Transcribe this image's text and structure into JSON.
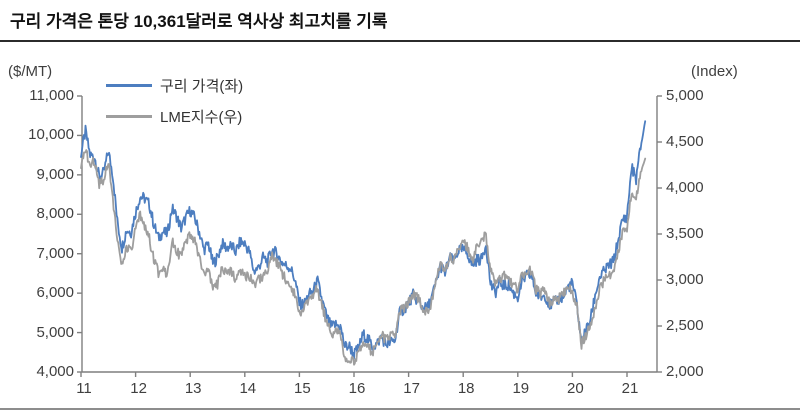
{
  "title": "구리 가격은 톤당 10,361달러로 역사상 최고치를 기록",
  "legend": {
    "items": [
      {
        "label": "구리 가격(좌)",
        "color": "#4d7ec0"
      },
      {
        "label": "LME지수(우)",
        "color": "#9e9e9e"
      }
    ]
  },
  "axes": {
    "left_unit": "($/MT)",
    "right_unit": "(Index)",
    "left_tick_labels": [
      "11,000",
      "10,000",
      "9,000",
      "8,000",
      "7,000",
      "6,000",
      "5,000",
      "4,000"
    ],
    "left_tick_values": [
      11000,
      10000,
      9000,
      8000,
      7000,
      6000,
      5000,
      4000
    ],
    "right_tick_labels": [
      "5,000",
      "4,500",
      "4,000",
      "3,500",
      "3,000",
      "2,500",
      "2,000"
    ],
    "right_tick_values": [
      5000,
      4500,
      4000,
      3500,
      3000,
      2500,
      2000
    ],
    "x_tick_labels": [
      "11",
      "12",
      "13",
      "14",
      "15",
      "16",
      "17",
      "18",
      "19",
      "20",
      "21"
    ],
    "x_tick_years": [
      2011,
      2012,
      2013,
      2014,
      2015,
      2016,
      2017,
      2018,
      2019,
      2020,
      2021
    ]
  },
  "chart_data": {
    "type": "line",
    "title": "구리 가격은 톤당 10,361달러로 역사상 최고치를 기록",
    "x_start_year": 2011.0,
    "x_step": "1 month",
    "x_end": "2021-05",
    "left_axis_label": "($/MT)",
    "right_axis_label": "(Index)",
    "left_range": [
      4000,
      11000
    ],
    "right_range": [
      2000,
      5000
    ],
    "x_domain_years": [
      2011.0,
      2021.55
    ],
    "grid": false,
    "legend_position": "top-left-inside",
    "series": [
      {
        "name": "구리 가격(좌)",
        "axis": "left",
        "unit": "$/MT",
        "color": "#4d7ec0",
        "peak_annotated": 10361,
        "values": [
          9550,
          10100,
          9500,
          9450,
          8950,
          9050,
          9600,
          9000,
          7800,
          7150,
          7600,
          7550,
          8050,
          8450,
          8400,
          8250,
          7750,
          7400,
          7550,
          7500,
          8150,
          7950,
          7650,
          7900,
          8100,
          7900,
          7550,
          7100,
          7250,
          6750,
          6900,
          7250,
          7150,
          7200,
          7050,
          7300,
          7250,
          7050,
          6550,
          6650,
          6900,
          6800,
          7100,
          7000,
          6800,
          6700,
          6650,
          6350,
          5750,
          5700,
          5950,
          6050,
          6300,
          5800,
          5400,
          5150,
          5200,
          5150,
          4650,
          4650,
          4450,
          4600,
          4950,
          4850,
          4650,
          4700,
          4900,
          4700,
          4750,
          4800,
          5500,
          5600,
          5750,
          5950,
          5800,
          5650,
          5600,
          5850,
          6250,
          6700,
          6500,
          6900,
          6800,
          7100,
          7100,
          7000,
          6700,
          6850,
          6850,
          7250,
          6250,
          6000,
          6250,
          6200,
          6200,
          6000,
          5900,
          6300,
          6450,
          6450,
          6000,
          5900,
          5950,
          5700,
          5750,
          5850,
          5900,
          6150,
          6250,
          5700,
          4750,
          5050,
          5350,
          5950,
          6400,
          6550,
          6700,
          6800,
          7300,
          7850,
          7950,
          9200,
          8900,
          9700,
          10361
        ]
      },
      {
        "name": "LME지수(우)",
        "axis": "right",
        "unit": "Index",
        "color": "#9e9e9e",
        "values": [
          4200,
          4430,
          4230,
          4300,
          4050,
          4100,
          4300,
          3900,
          3400,
          3150,
          3350,
          3300,
          3550,
          3700,
          3600,
          3450,
          3220,
          3080,
          3150,
          3050,
          3450,
          3320,
          3250,
          3400,
          3480,
          3420,
          3250,
          3050,
          3100,
          2900,
          2950,
          3150,
          3050,
          3100,
          3020,
          3120,
          3050,
          3040,
          2950,
          3000,
          3050,
          3100,
          3250,
          3200,
          3100,
          3000,
          2950,
          2850,
          2650,
          2700,
          2750,
          2850,
          2900,
          2700,
          2550,
          2400,
          2450,
          2400,
          2150,
          2150,
          2100,
          2200,
          2350,
          2300,
          2200,
          2300,
          2400,
          2350,
          2400,
          2400,
          2650,
          2700,
          2750,
          2850,
          2800,
          2700,
          2650,
          2750,
          2950,
          3200,
          3100,
          3250,
          3200,
          3350,
          3400,
          3350,
          3200,
          3350,
          3400,
          3500,
          3100,
          2950,
          3000,
          3050,
          3000,
          2950,
          2900,
          3050,
          3100,
          3100,
          2900,
          2850,
          2900,
          2750,
          2800,
          2800,
          2850,
          2950,
          2850,
          2700,
          2300,
          2400,
          2500,
          2700,
          2900,
          3000,
          3050,
          3100,
          3300,
          3500,
          3550,
          3950,
          3900,
          4150,
          4320
        ]
      }
    ]
  }
}
